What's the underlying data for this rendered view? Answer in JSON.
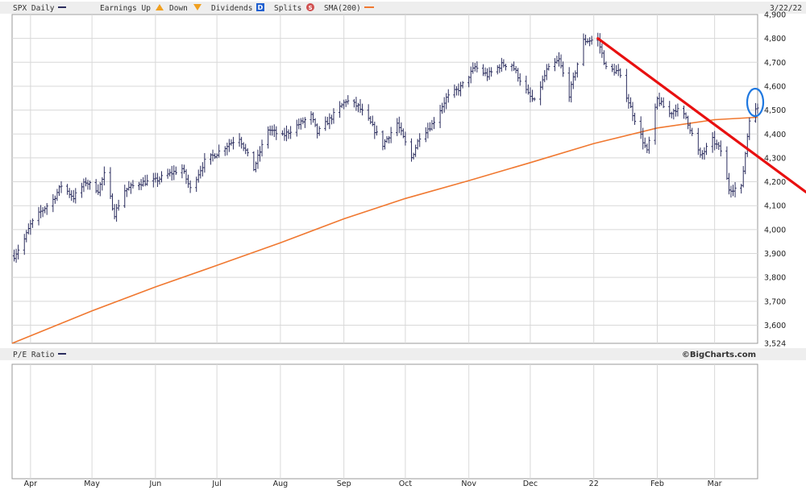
{
  "header": {
    "ticker": "SPX Daily",
    "earnings_label": "Earnings Up",
    "down_label": "Down",
    "dividends_label": "Dividends",
    "dividends_badge": "D",
    "splits_label": "Splits",
    "splits_badge": "S",
    "sma_label": "SMA(200)",
    "date": "3/22/22"
  },
  "lower_panel": {
    "title": "P/E Ratio",
    "brand": "©BigCharts.com"
  },
  "colors": {
    "price_bars": "#2b2d5e",
    "sma": "#f07830",
    "trendline": "#e81010",
    "highlight": "#1f78e0",
    "grid": "#d8d8d8",
    "header_bg": "#eeeeee"
  },
  "chart_data": {
    "type": "line",
    "ylim": [
      3524,
      4900
    ],
    "ytick_labels": [
      "4,900",
      "4,800",
      "4,700",
      "4,600",
      "4,500",
      "4,400",
      "4,300",
      "4,200",
      "4,100",
      "4,000",
      "3,900",
      "3,800",
      "3,700",
      "3,600",
      "3,524"
    ],
    "ytick_values": [
      4900,
      4800,
      4700,
      4600,
      4500,
      4400,
      4300,
      4200,
      4100,
      4000,
      3900,
      3800,
      3700,
      3600,
      3524
    ],
    "xtick_labels": [
      "Apr",
      "May",
      "Jun",
      "Jul",
      "Aug",
      "Sep",
      "Oct",
      "Nov",
      "Dec",
      "22",
      "Feb",
      "Mar"
    ],
    "x_range": [
      "2021-03-23",
      "2022-03-22"
    ],
    "series": [
      {
        "role": "price_close",
        "points": [
          [
            "2021-03-24",
            3890
          ],
          [
            "2021-03-29",
            3960
          ],
          [
            "2021-04-01",
            4020
          ],
          [
            "2021-04-06",
            4075
          ],
          [
            "2021-04-12",
            4125
          ],
          [
            "2021-04-16",
            4185
          ],
          [
            "2021-04-22",
            4135
          ],
          [
            "2021-04-28",
            4200
          ],
          [
            "2021-05-04",
            4165
          ],
          [
            "2021-05-07",
            4230
          ],
          [
            "2021-05-12",
            4065
          ],
          [
            "2021-05-17",
            4165
          ],
          [
            "2021-05-24",
            4195
          ],
          [
            "2021-06-01",
            4205
          ],
          [
            "2021-06-07",
            4230
          ],
          [
            "2021-06-14",
            4255
          ],
          [
            "2021-06-18",
            4170
          ],
          [
            "2021-06-25",
            4285
          ],
          [
            "2021-07-01",
            4320
          ],
          [
            "2021-07-07",
            4360
          ],
          [
            "2021-07-12",
            4385
          ],
          [
            "2021-07-19",
            4255
          ],
          [
            "2021-07-26",
            4420
          ],
          [
            "2021-08-02",
            4390
          ],
          [
            "2021-08-09",
            4435
          ],
          [
            "2021-08-16",
            4475
          ],
          [
            "2021-08-19",
            4405
          ],
          [
            "2021-08-26",
            4470
          ],
          [
            "2021-09-02",
            4540
          ],
          [
            "2021-09-08",
            4515
          ],
          [
            "2021-09-14",
            4445
          ],
          [
            "2021-09-20",
            4355
          ],
          [
            "2021-09-27",
            4445
          ],
          [
            "2021-10-04",
            4300
          ],
          [
            "2021-10-08",
            4390
          ],
          [
            "2021-10-14",
            4440
          ],
          [
            "2021-10-21",
            4550
          ],
          [
            "2021-10-28",
            4595
          ],
          [
            "2021-11-04",
            4680
          ],
          [
            "2021-11-10",
            4645
          ],
          [
            "2021-11-17",
            4690
          ],
          [
            "2021-11-22",
            4690
          ],
          [
            "2021-11-30",
            4565
          ],
          [
            "2021-12-03",
            4535
          ],
          [
            "2021-12-09",
            4665
          ],
          [
            "2021-12-15",
            4710
          ],
          [
            "2021-12-20",
            4565
          ],
          [
            "2021-12-27",
            4790
          ],
          [
            "2022-01-03",
            4795
          ],
          [
            "2022-01-07",
            4675
          ],
          [
            "2022-01-13",
            4660
          ],
          [
            "2022-01-20",
            4485
          ],
          [
            "2022-01-27",
            4325
          ],
          [
            "2022-02-01",
            4545
          ],
          [
            "2022-02-07",
            4485
          ],
          [
            "2022-02-10",
            4505
          ],
          [
            "2022-02-15",
            4470
          ],
          [
            "2022-02-22",
            4305
          ],
          [
            "2022-02-28",
            4375
          ],
          [
            "2022-03-04",
            4330
          ],
          [
            "2022-03-08",
            4170
          ],
          [
            "2022-03-14",
            4175
          ],
          [
            "2022-03-18",
            4465
          ],
          [
            "2022-03-22",
            4510
          ]
        ]
      },
      {
        "role": "sma_200",
        "points": [
          [
            "2021-03-23",
            3524
          ],
          [
            "2021-05-01",
            3660
          ],
          [
            "2021-06-01",
            3760
          ],
          [
            "2021-07-01",
            3850
          ],
          [
            "2021-08-01",
            3945
          ],
          [
            "2021-09-01",
            4045
          ],
          [
            "2021-10-01",
            4130
          ],
          [
            "2021-11-01",
            4205
          ],
          [
            "2021-12-01",
            4280
          ],
          [
            "2022-01-01",
            4360
          ],
          [
            "2022-02-01",
            4425
          ],
          [
            "2022-03-01",
            4460
          ],
          [
            "2022-03-22",
            4470
          ]
        ]
      },
      {
        "role": "trendline",
        "points": [
          [
            "2022-01-03",
            4800
          ],
          [
            "2022-03-23",
            4300
          ]
        ]
      }
    ]
  }
}
